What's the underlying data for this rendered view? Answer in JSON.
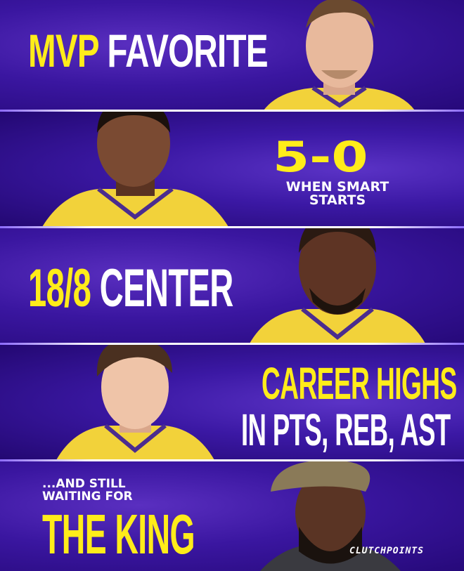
{
  "panels": [
    {
      "yellow": "MVP",
      "white": "FAVORITE"
    },
    {
      "score": "5-0",
      "line1": "WHEN SMART",
      "line2": "STARTS"
    },
    {
      "yellow": "18/8",
      "white": "CENTER"
    },
    {
      "line1": "CAREER HIGHS",
      "line2": "IN PTS, REB, AST"
    },
    {
      "line1": "...AND STILL",
      "line2": "WAITING FOR",
      "line3": "THE KING"
    }
  ],
  "watermark": "CLUTCHPOINTS",
  "colors": {
    "purple": "#3a16a0",
    "yellow": "#ffec1a",
    "jersey": "#f2d23a"
  }
}
